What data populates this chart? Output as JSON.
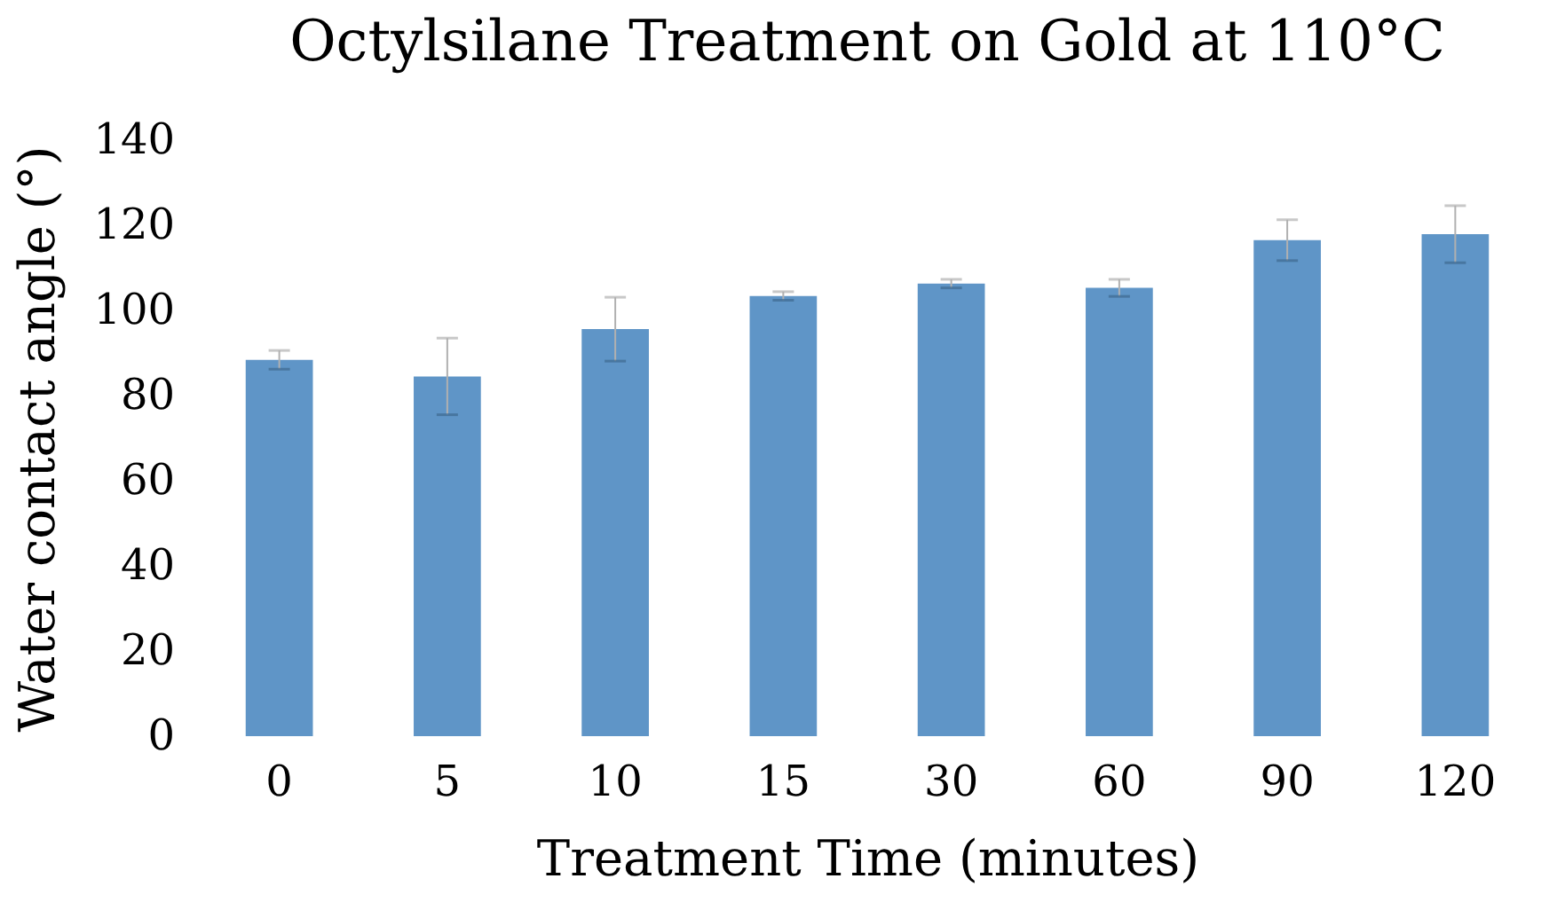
{
  "chart_data": {
    "type": "bar",
    "title": "Octylsilane Treatment on Gold at 110°C",
    "xlabel": "Treatment Time (minutes)",
    "ylabel": "Water contact angle (°)",
    "categories": [
      "0",
      "5",
      "10",
      "15",
      "30",
      "60",
      "90",
      "120"
    ],
    "values": [
      88.4,
      84.5,
      95.6,
      103.4,
      106.3,
      105.3,
      116.5,
      117.9
    ],
    "errors": [
      2.2,
      9,
      7.5,
      1,
      1,
      2,
      4.8,
      6.7
    ],
    "color": "#5f95c7",
    "ylim": [
      0,
      140
    ],
    "yticks": [
      0,
      20,
      40,
      60,
      80,
      100,
      120,
      140
    ],
    "grid": false
  }
}
